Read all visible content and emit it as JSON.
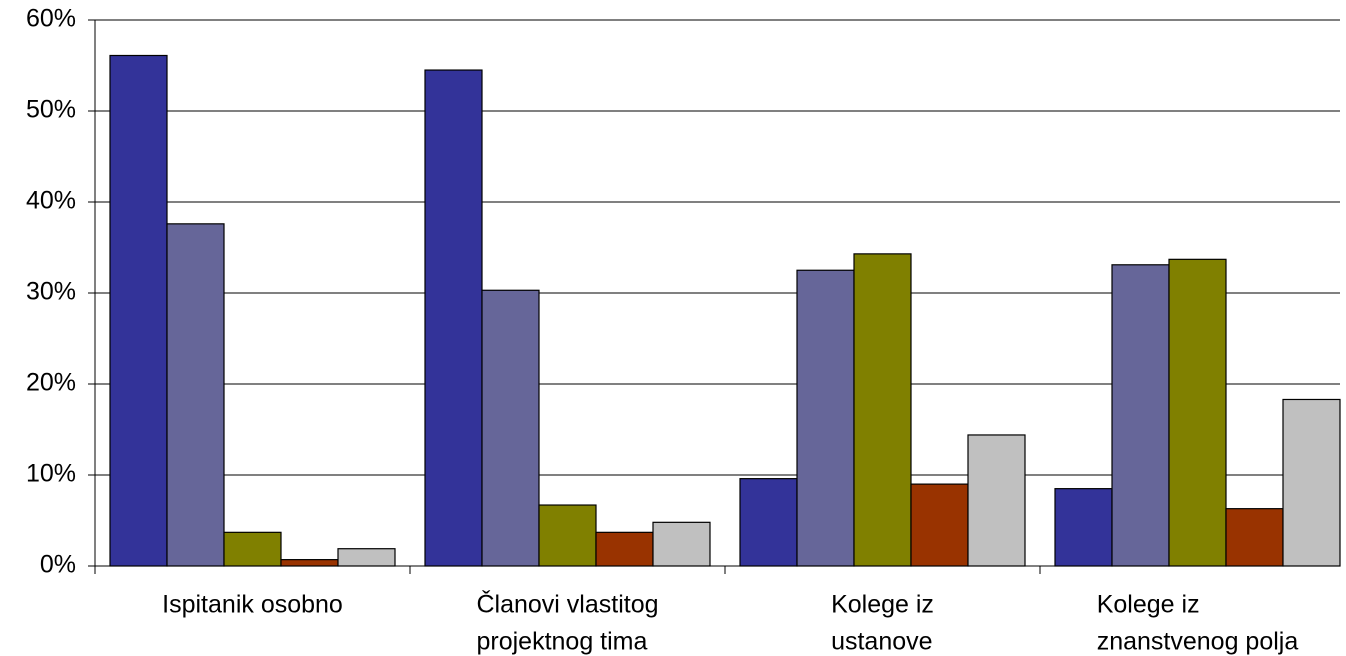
{
  "chart_data": {
    "type": "bar",
    "categories": [
      [
        "Ispitanik osobno"
      ],
      [
        "Članovi vlastitog",
        "projektnog tima"
      ],
      [
        "Kolege iz",
        "ustanove"
      ],
      [
        "Kolege iz",
        "znanstvenog polja"
      ]
    ],
    "series": [
      {
        "color": "#333399",
        "values": [
          56.1,
          54.5,
          9.6,
          8.5
        ]
      },
      {
        "color": "#666699",
        "values": [
          37.6,
          30.3,
          32.5,
          33.1
        ]
      },
      {
        "color": "#808000",
        "values": [
          3.7,
          6.7,
          34.3,
          33.7
        ]
      },
      {
        "color": "#993300",
        "values": [
          0.7,
          3.7,
          9.0,
          6.3
        ]
      },
      {
        "color": "#c0c0c0",
        "values": [
          1.9,
          4.8,
          14.4,
          18.3
        ]
      }
    ],
    "ylim": [
      0,
      60
    ],
    "yticks": [
      {
        "value": 0,
        "label": "0%"
      },
      {
        "value": 10,
        "label": "10%"
      },
      {
        "value": 20,
        "label": "20%"
      },
      {
        "value": 30,
        "label": "30%"
      },
      {
        "value": 40,
        "label": "40%"
      },
      {
        "value": 50,
        "label": "50%"
      },
      {
        "value": 60,
        "label": "60%"
      }
    ],
    "grid": true
  }
}
